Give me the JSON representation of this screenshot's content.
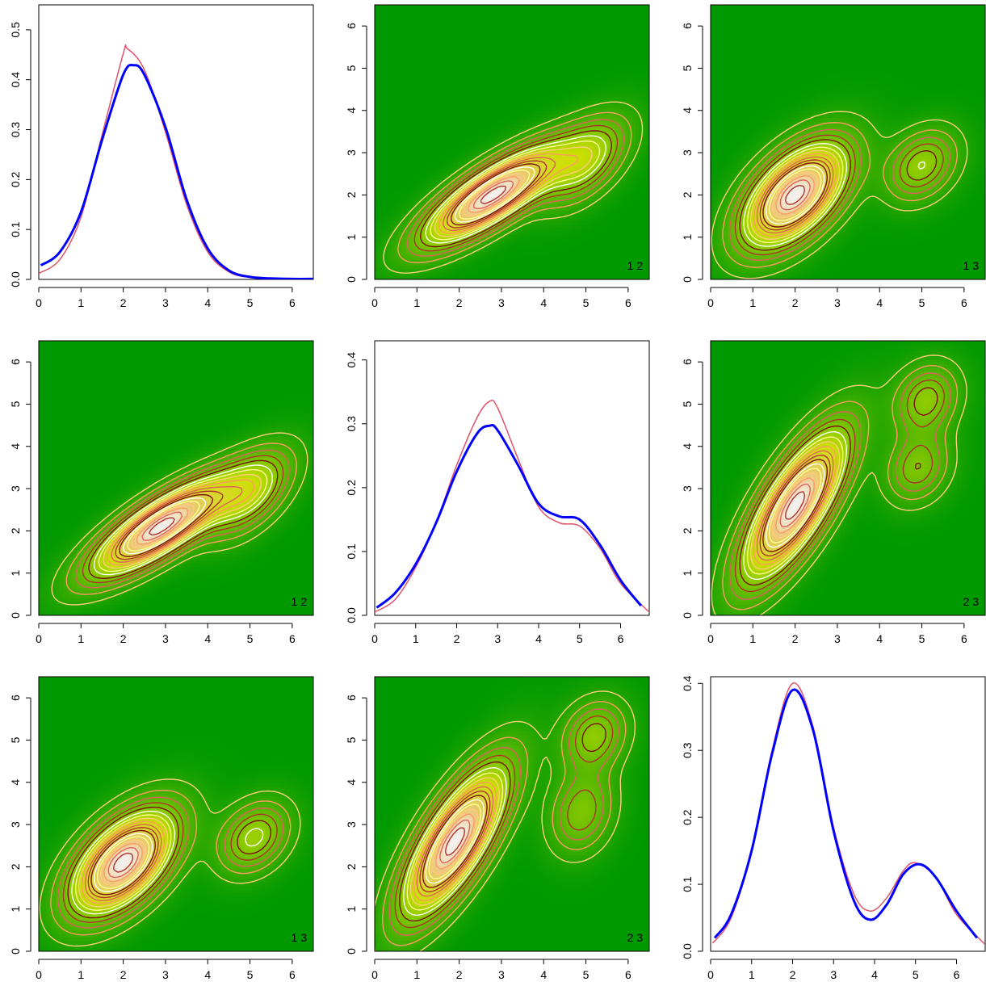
{
  "figure": {
    "layout": "3x3 pairs plot",
    "colors": {
      "density_fill_low": "#009900",
      "density_fill_mid": "#cce000",
      "density_fill_high": "#f2f2f2",
      "estimate_line": "#0000ff",
      "true_line": "#df536b",
      "contour_palette": [
        "#ffff99",
        "#ffcc80",
        "#ff9966",
        "#e06060",
        "#b03030",
        "#7a1010",
        "#ffffff"
      ]
    }
  },
  "chart_data": [
    {
      "panel": "1,1",
      "type": "line",
      "xlim": [
        0,
        6.5
      ],
      "ylim": [
        0,
        0.55
      ],
      "x_ticks": [
        "0",
        "1",
        "2",
        "3",
        "4",
        "5",
        "6"
      ],
      "y_ticks": [
        "0.0",
        "0.1",
        "0.2",
        "0.3",
        "0.4",
        "0.5"
      ],
      "series": [
        {
          "color": "#0000ff",
          "x": [
            0.05,
            0.5,
            1.0,
            1.5,
            2.0,
            2.25,
            2.5,
            3.0,
            3.5,
            4.0,
            4.5,
            5.0,
            5.5,
            6.0,
            6.5
          ],
          "y": [
            0.028,
            0.055,
            0.135,
            0.28,
            0.41,
            0.429,
            0.41,
            0.305,
            0.16,
            0.062,
            0.018,
            0.005,
            0.002,
            0.001,
            0.001
          ]
        },
        {
          "color": "#df536b",
          "x": [
            0.0,
            0.5,
            1.0,
            1.5,
            2.0,
            2.1,
            2.5,
            3.0,
            3.5,
            4.0,
            4.5,
            5.0,
            5.5,
            6.0,
            6.5
          ],
          "y": [
            0.012,
            0.04,
            0.125,
            0.29,
            0.452,
            0.462,
            0.42,
            0.295,
            0.15,
            0.055,
            0.015,
            0.004,
            0.001,
            0.0,
            0.0
          ]
        }
      ]
    },
    {
      "panel": "1,2",
      "type": "heatmap",
      "tag": "1 2",
      "xlim": [
        0,
        6.5
      ],
      "ylim": [
        0,
        6.5
      ],
      "x_ticks": [
        "0",
        "1",
        "2",
        "3",
        "4",
        "5",
        "6"
      ],
      "y_ticks": [
        "0",
        "1",
        "2",
        "3",
        "4",
        "5",
        "6"
      ],
      "components": [
        {
          "mx": 2.8,
          "my": 2.0,
          "sx": 1.05,
          "sy": 0.75,
          "rho": 0.8,
          "w": 1.0
        },
        {
          "mx": 5.0,
          "my": 2.8,
          "sx": 0.65,
          "sy": 0.65,
          "rho": 0.55,
          "w": 0.38
        }
      ]
    },
    {
      "panel": "1,3",
      "type": "heatmap",
      "tag": "1 3",
      "xlim": [
        0,
        6.5
      ],
      "ylim": [
        0,
        6.5
      ],
      "x_ticks": [
        "0",
        "1",
        "2",
        "3",
        "4",
        "5",
        "6"
      ],
      "y_ticks": [
        "0",
        "1",
        "2",
        "3",
        "4",
        "5",
        "6"
      ],
      "components": [
        {
          "mx": 2.0,
          "my": 2.0,
          "sx": 0.8,
          "sy": 0.8,
          "rho": 0.55,
          "w": 1.0
        },
        {
          "mx": 5.0,
          "my": 2.7,
          "sx": 0.55,
          "sy": 0.55,
          "rho": 0.3,
          "w": 0.32
        }
      ]
    },
    {
      "panel": "2,1",
      "type": "heatmap",
      "tag": "1 2",
      "xlim": [
        0,
        6.5
      ],
      "ylim": [
        0,
        6.5
      ],
      "x_ticks": [
        "0",
        "1",
        "2",
        "3",
        "4",
        "5",
        "6"
      ],
      "y_ticks": [
        "0",
        "1",
        "2",
        "3",
        "4",
        "5",
        "6"
      ],
      "components": [
        {
          "mx": 2.9,
          "my": 2.1,
          "sx": 1.05,
          "sy": 0.75,
          "rho": 0.8,
          "w": 1.0
        },
        {
          "mx": 5.0,
          "my": 2.9,
          "sx": 0.65,
          "sy": 0.65,
          "rho": 0.55,
          "w": 0.4
        }
      ]
    },
    {
      "panel": "2,2",
      "type": "line",
      "xlim": [
        0,
        6.7
      ],
      "ylim": [
        0,
        0.43
      ],
      "x_ticks": [
        "0",
        "1",
        "2",
        "3",
        "4",
        "5",
        "6"
      ],
      "y_ticks": [
        "0.0",
        "0.1",
        "0.2",
        "0.3",
        "0.4"
      ],
      "series": [
        {
          "color": "#0000ff",
          "x": [
            0.05,
            0.5,
            1.0,
            1.5,
            2.0,
            2.5,
            2.8,
            3.0,
            3.5,
            4.0,
            4.5,
            5.0,
            5.5,
            6.0,
            6.5
          ],
          "y": [
            0.012,
            0.035,
            0.08,
            0.145,
            0.225,
            0.285,
            0.297,
            0.29,
            0.235,
            0.175,
            0.155,
            0.15,
            0.11,
            0.055,
            0.015
          ]
        },
        {
          "color": "#df536b",
          "x": [
            0.0,
            0.5,
            1.0,
            1.5,
            2.0,
            2.5,
            2.8,
            3.0,
            3.5,
            4.0,
            4.5,
            5.0,
            5.5,
            6.0,
            6.7
          ],
          "y": [
            0.005,
            0.025,
            0.075,
            0.145,
            0.235,
            0.31,
            0.335,
            0.325,
            0.245,
            0.17,
            0.145,
            0.14,
            0.105,
            0.05,
            0.005
          ]
        }
      ]
    },
    {
      "panel": "2,3",
      "type": "heatmap",
      "tag": "2 3",
      "xlim": [
        0,
        6.5
      ],
      "ylim": [
        0,
        6.5
      ],
      "x_ticks": [
        "0",
        "1",
        "2",
        "3",
        "4",
        "5",
        "6"
      ],
      "y_ticks": [
        "0",
        "1",
        "2",
        "3",
        "4",
        "5",
        "6"
      ],
      "components": [
        {
          "mx": 2.0,
          "my": 2.6,
          "sx": 0.8,
          "sy": 1.15,
          "rho": 0.75,
          "w": 1.0
        },
        {
          "mx": 5.1,
          "my": 5.1,
          "sx": 0.5,
          "sy": 0.55,
          "rho": 0.2,
          "w": 0.3
        },
        {
          "mx": 4.9,
          "my": 3.5,
          "sx": 0.5,
          "sy": 0.55,
          "rho": 0.2,
          "w": 0.26
        }
      ]
    },
    {
      "panel": "3,1",
      "type": "heatmap",
      "tag": "1 3",
      "xlim": [
        0,
        6.5
      ],
      "ylim": [
        0,
        6.5
      ],
      "x_ticks": [
        "0",
        "1",
        "2",
        "3",
        "4",
        "5",
        "6"
      ],
      "y_ticks": [
        "0",
        "1",
        "2",
        "3",
        "4",
        "5",
        "6"
      ],
      "components": [
        {
          "mx": 2.0,
          "my": 2.1,
          "sx": 0.8,
          "sy": 0.8,
          "rho": 0.55,
          "w": 1.0
        },
        {
          "mx": 5.1,
          "my": 2.7,
          "sx": 0.55,
          "sy": 0.55,
          "rho": 0.3,
          "w": 0.34
        }
      ]
    },
    {
      "panel": "3,2",
      "type": "heatmap",
      "tag": "2 3",
      "xlim": [
        0,
        6.5
      ],
      "ylim": [
        0,
        6.5
      ],
      "x_ticks": [
        "0",
        "1",
        "2",
        "3",
        "4",
        "5",
        "6"
      ],
      "y_ticks": [
        "0",
        "1",
        "2",
        "3",
        "4",
        "5",
        "6"
      ],
      "components": [
        {
          "mx": 1.9,
          "my": 2.6,
          "sx": 0.8,
          "sy": 1.15,
          "rho": 0.75,
          "w": 1.0
        },
        {
          "mx": 5.2,
          "my": 5.1,
          "sx": 0.5,
          "sy": 0.55,
          "rho": 0.2,
          "w": 0.3
        },
        {
          "mx": 4.9,
          "my": 3.3,
          "sx": 0.5,
          "sy": 0.65,
          "rho": 0.2,
          "w": 0.26
        }
      ]
    },
    {
      "panel": "3,3",
      "type": "line",
      "xlim": [
        0,
        6.7
      ],
      "ylim": [
        0,
        0.41
      ],
      "x_ticks": [
        "0",
        "1",
        "2",
        "3",
        "4",
        "5",
        "6"
      ],
      "y_ticks": [
        "0.0",
        "0.1",
        "0.2",
        "0.3",
        "0.4"
      ],
      "series": [
        {
          "color": "#0000ff",
          "x": [
            0.1,
            0.5,
            1.0,
            1.5,
            2.0,
            2.5,
            3.0,
            3.5,
            3.9,
            4.3,
            4.7,
            5.1,
            5.5,
            6.0,
            6.5
          ],
          "y": [
            0.02,
            0.055,
            0.15,
            0.295,
            0.39,
            0.33,
            0.18,
            0.075,
            0.047,
            0.07,
            0.115,
            0.13,
            0.11,
            0.06,
            0.02
          ]
        },
        {
          "color": "#df536b",
          "x": [
            0.05,
            0.5,
            1.0,
            1.5,
            2.0,
            2.5,
            3.0,
            3.5,
            3.9,
            4.3,
            4.7,
            5.0,
            5.5,
            6.0,
            6.7
          ],
          "y": [
            0.012,
            0.05,
            0.15,
            0.3,
            0.4,
            0.335,
            0.185,
            0.085,
            0.06,
            0.08,
            0.12,
            0.132,
            0.11,
            0.055,
            0.01
          ]
        }
      ]
    }
  ]
}
